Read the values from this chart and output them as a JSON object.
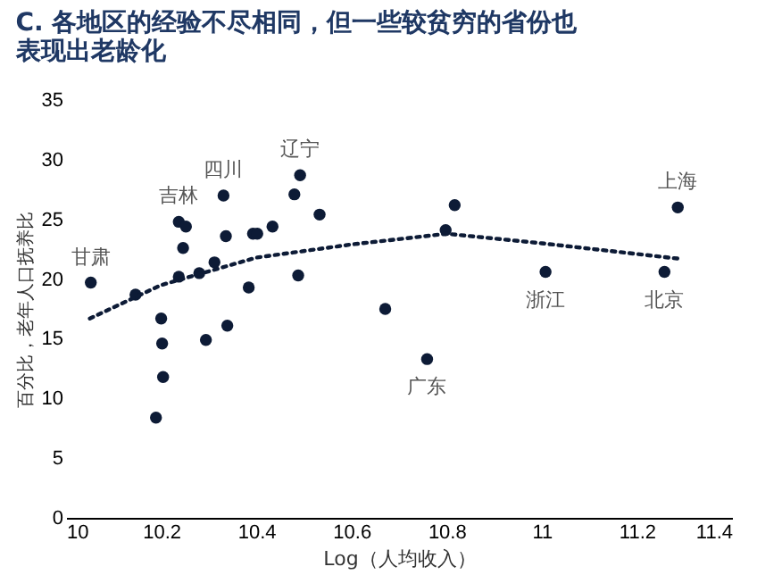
{
  "chart_data": {
    "type": "scatter",
    "title": "C. 各地区的经验不尽相同，但一些较贫穷的省份也表现出老龄化",
    "xlabel": "Log（人均收入）",
    "ylabel": "百分比，老年人口抚养比",
    "xlim": [
      10,
      11.4
    ],
    "xticks": [
      10,
      10.2,
      10.4,
      10.6,
      10.8,
      11,
      11.2,
      11.4
    ],
    "ylim": [
      0,
      35
    ],
    "yticks": [
      0,
      5,
      10,
      15,
      20,
      25,
      30,
      35
    ],
    "grid": false,
    "legend": false,
    "series": [
      {
        "color": "#0d1b36",
        "marker": "circle",
        "x": [
          10.052,
          10.146,
          10.237,
          10.252,
          10.246,
          10.237,
          10.2,
          10.202,
          10.204,
          10.189,
          10.28,
          10.294,
          10.312,
          10.331,
          10.336,
          10.339,
          10.384,
          10.393,
          10.402,
          10.434,
          10.48,
          10.492,
          10.488,
          10.533,
          10.671,
          10.759,
          10.798,
          10.817,
          11.008,
          11.258,
          11.286
        ],
        "values": [
          19.7,
          18.7,
          24.8,
          24.4,
          22.6,
          20.2,
          16.7,
          14.6,
          11.8,
          8.4,
          20.5,
          14.9,
          21.4,
          27.0,
          23.6,
          16.1,
          19.3,
          23.8,
          23.8,
          24.4,
          27.1,
          28.7,
          20.3,
          25.4,
          17.5,
          13.3,
          24.1,
          26.2,
          20.6,
          20.6,
          26.0
        ]
      },
      {
        "type": "line",
        "color": "#0d1b36",
        "line_style": "dotted",
        "x": [
          10.05,
          10.2,
          10.4,
          10.6,
          10.8,
          11.0,
          11.2,
          11.29
        ],
        "values": [
          16.7,
          19.5,
          21.8,
          22.9,
          23.8,
          23.0,
          22.1,
          21.7
        ]
      }
    ],
    "annotations": [
      {
        "text": "甘肃",
        "x": 10.052,
        "y": 19.7
      },
      {
        "text": "吉林",
        "x": 10.237,
        "y": 24.8
      },
      {
        "text": "四川",
        "x": 10.331,
        "y": 27.0
      },
      {
        "text": "辽宁",
        "x": 10.492,
        "y": 28.7
      },
      {
        "text": "广东",
        "x": 10.759,
        "y": 13.3
      },
      {
        "text": "浙江",
        "x": 11.008,
        "y": 20.6
      },
      {
        "text": "北京",
        "x": 11.258,
        "y": 20.6
      },
      {
        "text": "上海",
        "x": 11.286,
        "y": 26.0
      }
    ]
  }
}
